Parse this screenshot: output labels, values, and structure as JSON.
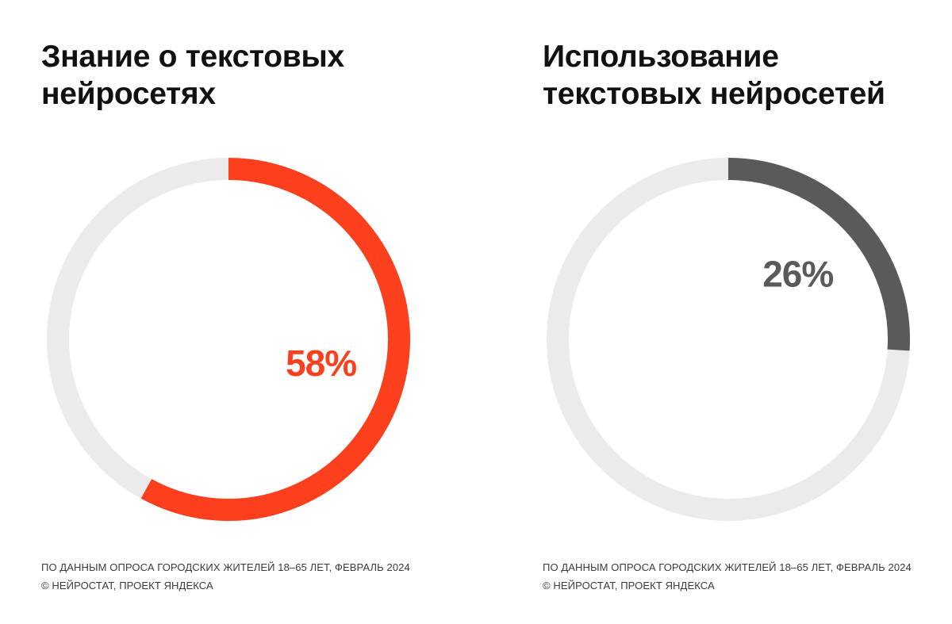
{
  "colors": {
    "track": "#ebebeb",
    "knowledge": "#fc3f1d",
    "usage": "#5a5a5a"
  },
  "chart_data": [
    {
      "type": "pie",
      "variant": "donut",
      "title_lines": [
        "Знание о текстовых",
        "нейросетях"
      ],
      "value": 58,
      "label": "58%",
      "color": "#fc3f1d",
      "track_color": "#ebebeb",
      "footnote_lines": [
        "ПО ДАННЫМ ОПРОСА ГОРОДСКИХ ЖИТЕЛЕЙ 18–65 ЛЕТ, ФЕВРАЛЬ 2024",
        "© НЕЙРОСТАТ, ПРОЕКТ ЯНДЕКСА"
      ]
    },
    {
      "type": "pie",
      "variant": "donut",
      "title_lines": [
        "Использование",
        "текстовых нейросетей"
      ],
      "value": 26,
      "label": "26%",
      "color": "#5a5a5a",
      "track_color": "#ebebeb",
      "footnote_lines": [
        "ПО ДАННЫМ ОПРОСА ГОРОДСКИХ ЖИТЕЛЕЙ 18–65 ЛЕТ, ФЕВРАЛЬ 2024",
        "© НЕЙРОСТАТ, ПРОЕКТ ЯНДЕКСА"
      ]
    }
  ]
}
